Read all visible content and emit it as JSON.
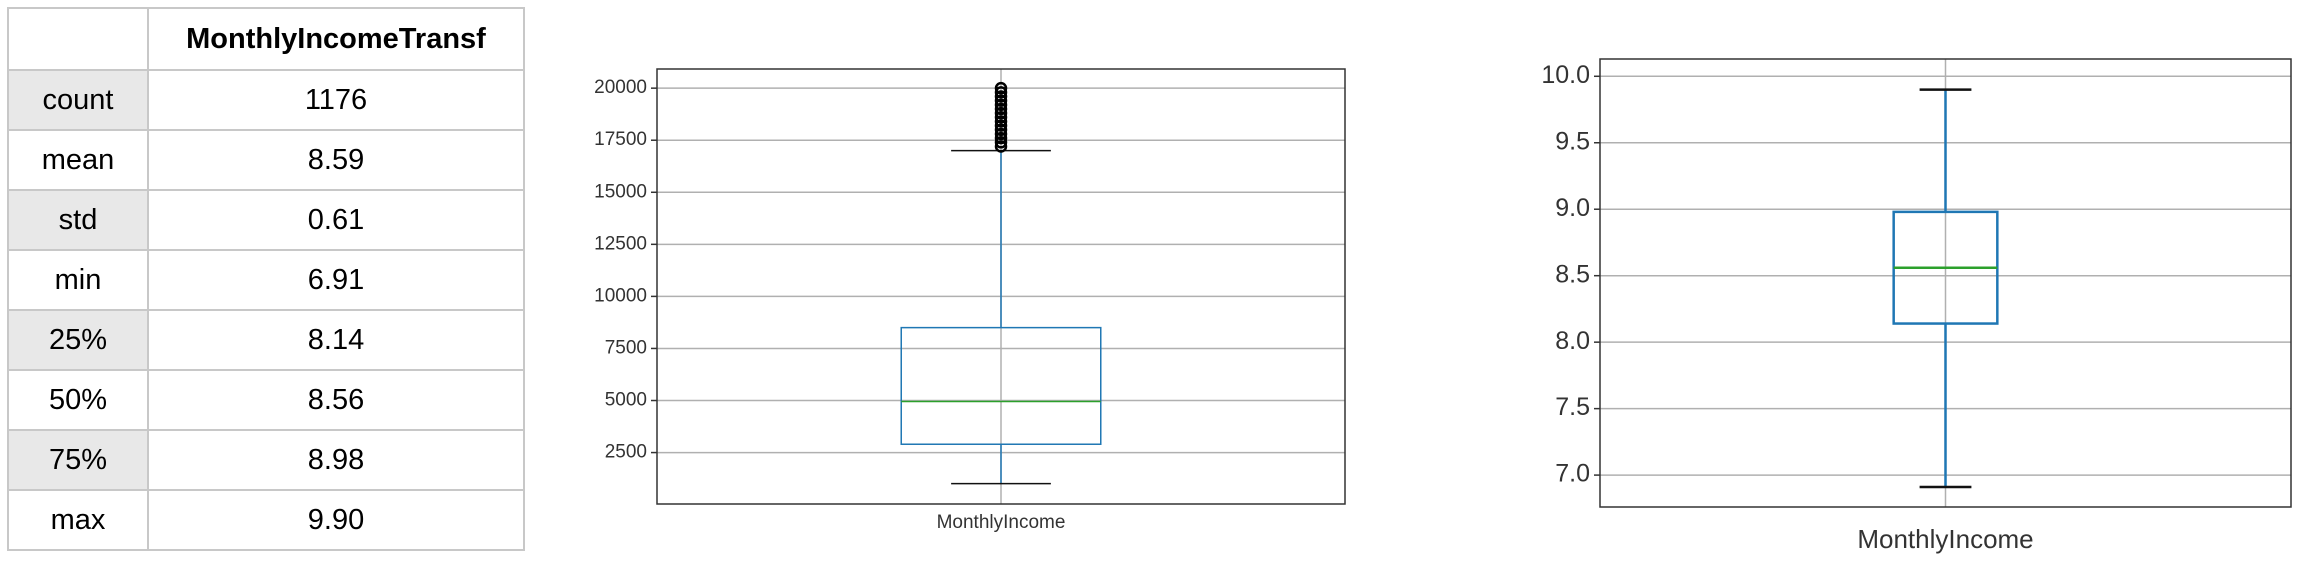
{
  "table": {
    "header": "MonthlyIncomeTransf",
    "rows": [
      [
        "count",
        "1176"
      ],
      [
        "mean",
        "8.59"
      ],
      [
        "std",
        "0.61"
      ],
      [
        "min",
        "6.91"
      ],
      [
        "25%",
        "8.14"
      ],
      [
        "50%",
        "8.56"
      ],
      [
        "75%",
        "8.98"
      ],
      [
        "max",
        "9.90"
      ]
    ]
  },
  "chart_data": [
    {
      "type": "box",
      "categories": [
        "MonthlyIncome"
      ],
      "whislo": 1009,
      "q1": 2900,
      "median": 4950,
      "q3": 8500,
      "whishi": 17000,
      "fliers": [
        17200,
        17400,
        17600,
        17800,
        18000,
        18200,
        18400,
        18600,
        18800,
        19000,
        19200,
        19400,
        19600,
        19800,
        19999
      ],
      "ylim": [
        30,
        20920
      ],
      "yticks": [
        2500,
        5000,
        7500,
        10000,
        12500,
        15000,
        17500,
        20000
      ],
      "color": "#1f77b4",
      "median_color": "#2ca02c",
      "grid": true
    },
    {
      "type": "box",
      "categories": [
        "MonthlyIncome"
      ],
      "whislo": 6.91,
      "q1": 8.14,
      "median": 8.56,
      "q3": 8.98,
      "whishi": 9.9,
      "fliers": [],
      "ylim": [
        6.76,
        10.13
      ],
      "yticks": [
        {
          "value": 7,
          "label": "7.0"
        },
        7.5,
        {
          "value": 8,
          "label": "8.0"
        },
        8.5,
        {
          "value": 9,
          "label": "9.0"
        },
        9.5,
        {
          "value": 10,
          "label": "10.0"
        }
      ],
      "color": "#1f77b4",
      "median_color": "#2ca02c",
      "grid": true
    }
  ]
}
